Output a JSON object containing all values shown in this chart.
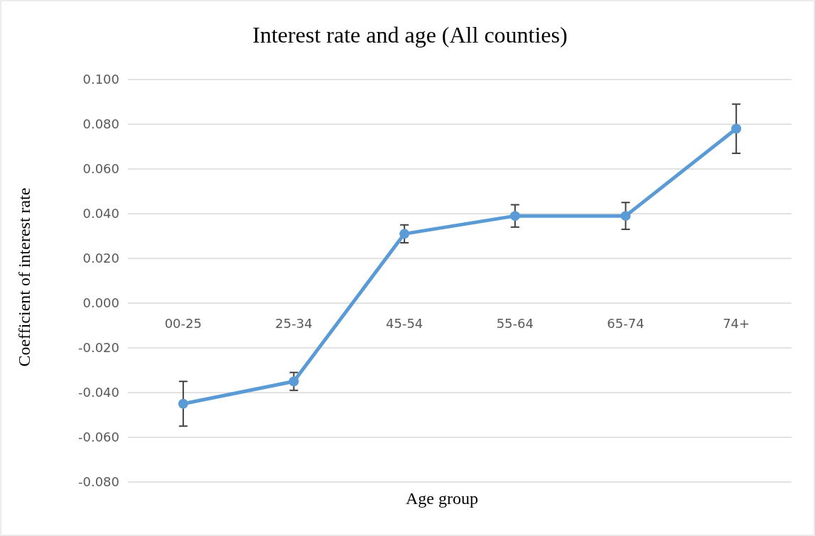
{
  "chart_data": {
    "type": "line",
    "title": "Interest rate and age (All counties)",
    "xlabel": "Age group",
    "ylabel": "Coefficient of interest rate",
    "categories": [
      "00-25",
      "25-34",
      "45-54",
      "55-64",
      "65-74",
      "74+"
    ],
    "series": [
      {
        "color": "#5b9bd5",
        "values": [
          -0.045,
          -0.035,
          0.031,
          0.039,
          0.039,
          0.078
        ],
        "errors": [
          0.01,
          0.004,
          0.004,
          0.005,
          0.006,
          0.011
        ]
      }
    ],
    "ylim": [
      -0.08,
      0.1
    ],
    "yticks": [
      {
        "value": -0.08,
        "label": "-0.080"
      },
      {
        "value": -0.06,
        "label": "-0.060"
      },
      {
        "value": -0.04,
        "label": "-0.040"
      },
      {
        "value": -0.02,
        "label": "-0.020"
      },
      {
        "value": 0,
        "label": "0.000"
      },
      {
        "value": 0.02,
        "label": "0.020"
      },
      {
        "value": 0.04,
        "label": "0.040"
      },
      {
        "value": 0.06,
        "label": "0.060"
      },
      {
        "value": 0.08,
        "label": "0.080"
      },
      {
        "value": 0.1,
        "label": "0.100"
      }
    ],
    "grid": "y",
    "marker": "circle",
    "line_style": "solid"
  }
}
